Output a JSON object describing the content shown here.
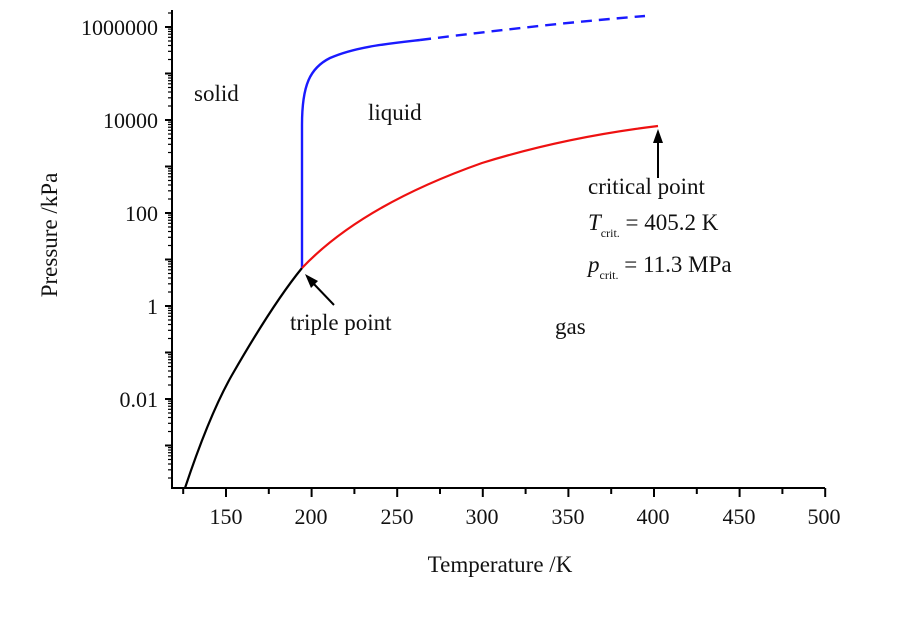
{
  "chart_data": {
    "type": "line",
    "title": "",
    "xlabel": "Temperature /K",
    "ylabel": "Pressure /kPa",
    "xlim": [
      118,
      500
    ],
    "ylim": [
      0.0001,
      5000000
    ],
    "yscale": "log",
    "grid": false,
    "x_ticks": [
      150,
      200,
      250,
      300,
      350,
      400,
      450,
      500
    ],
    "x_tick_labels": [
      "150",
      "200",
      "250",
      "300",
      "350",
      "400",
      "450",
      "500"
    ],
    "y_ticks": [
      0.01,
      1,
      100,
      10000,
      1000000
    ],
    "y_tick_labels": [
      "0.01",
      "1",
      "100",
      "10000",
      "1000000"
    ],
    "series": [
      {
        "name": "sublimation curve (solid-gas)",
        "color": "#000000",
        "style": "solid",
        "x": [
          125,
          135,
          150,
          165,
          180,
          195.4
        ],
        "y": [
          0.0001,
          0.0008,
          0.015,
          0.11,
          0.8,
          6.1
        ]
      },
      {
        "name": "melting curve (solid-liquid)",
        "color": "#1a1aff",
        "style": "solid",
        "x": [
          195.4,
          195.6,
          196.5,
          200,
          210,
          230,
          260
        ],
        "y": [
          6.1,
          100,
          20000,
          100000,
          200000,
          350000,
          500000
        ]
      },
      {
        "name": "melting curve extrapolated",
        "color": "#1a1aff",
        "style": "dashed",
        "x": [
          260,
          300,
          350,
          395
        ],
        "y": [
          500000,
          750000,
          1100000,
          1600000
        ]
      },
      {
        "name": "vaporization curve (liquid-gas)",
        "color": "#ee1111",
        "style": "solid",
        "x": [
          195.4,
          220,
          250,
          300,
          350,
          405.2
        ],
        "y": [
          6.1,
          30,
          150,
          1000,
          3800,
          11300
        ]
      }
    ],
    "annotations": [
      {
        "text": "solid",
        "x": 140,
        "y": 40000
      },
      {
        "text": "liquid",
        "x": 240,
        "y": 8000
      },
      {
        "text": "gas",
        "x": 345,
        "y": 0.5
      },
      {
        "text": "triple point",
        "x": 195.4,
        "y": 6.1,
        "arrow": true
      },
      {
        "text": "critical point",
        "x": 405.2,
        "y": 11300,
        "arrow": true
      },
      {
        "text": "T_crit. = 405.2 K"
      },
      {
        "text": "p_crit. = 11.3 MPa"
      }
    ]
  },
  "labels": {
    "xlabel": "Temperature /K",
    "ylabel": "Pressure /kPa",
    "solid": "solid",
    "liquid": "liquid",
    "gas": "gas",
    "triple_point": "triple point",
    "critical_point": "critical point",
    "t_sym": "T",
    "p_sym": "p",
    "crit_sub": "crit.",
    "t_value": " = 405.2 K",
    "p_value": " = 11.3 MPa"
  },
  "colors": {
    "sublimation": "#000000",
    "melting": "#1a1aff",
    "vaporization": "#ee1111",
    "axis": "#000000"
  }
}
